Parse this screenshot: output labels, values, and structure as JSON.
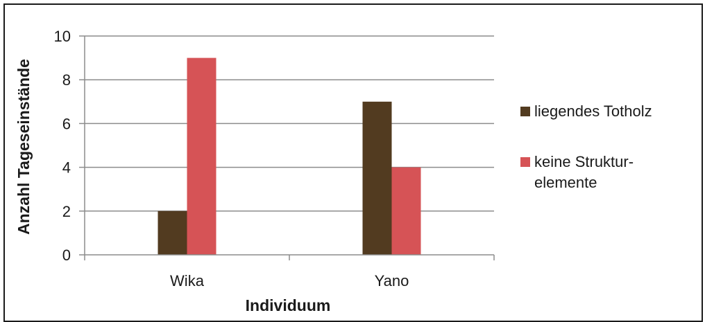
{
  "chart_data": {
    "type": "bar",
    "title": "",
    "xlabel": "Individuum",
    "ylabel": "Anzahl Tageseinstände",
    "ylim": [
      0,
      10
    ],
    "yticks": [
      0,
      2,
      4,
      6,
      8,
      10
    ],
    "grid": true,
    "legend_position": "right",
    "categories": [
      "Wika",
      "Yano"
    ],
    "series": [
      {
        "name": "liegendes Totholz",
        "values": [
          2,
          7
        ],
        "color": "#523b20"
      },
      {
        "name": "keine Strukturelemente",
        "values": [
          9,
          4
        ],
        "color": "#d65356"
      }
    ]
  },
  "legend": {
    "items": [
      {
        "lines": [
          "liegendes Totholz"
        ]
      },
      {
        "lines": [
          "keine Struktur-",
          "elemente"
        ]
      }
    ]
  },
  "colors": {
    "gridline": "#8c8c8c",
    "axis": "#8c8c8c",
    "text": "#1a1a1a"
  }
}
